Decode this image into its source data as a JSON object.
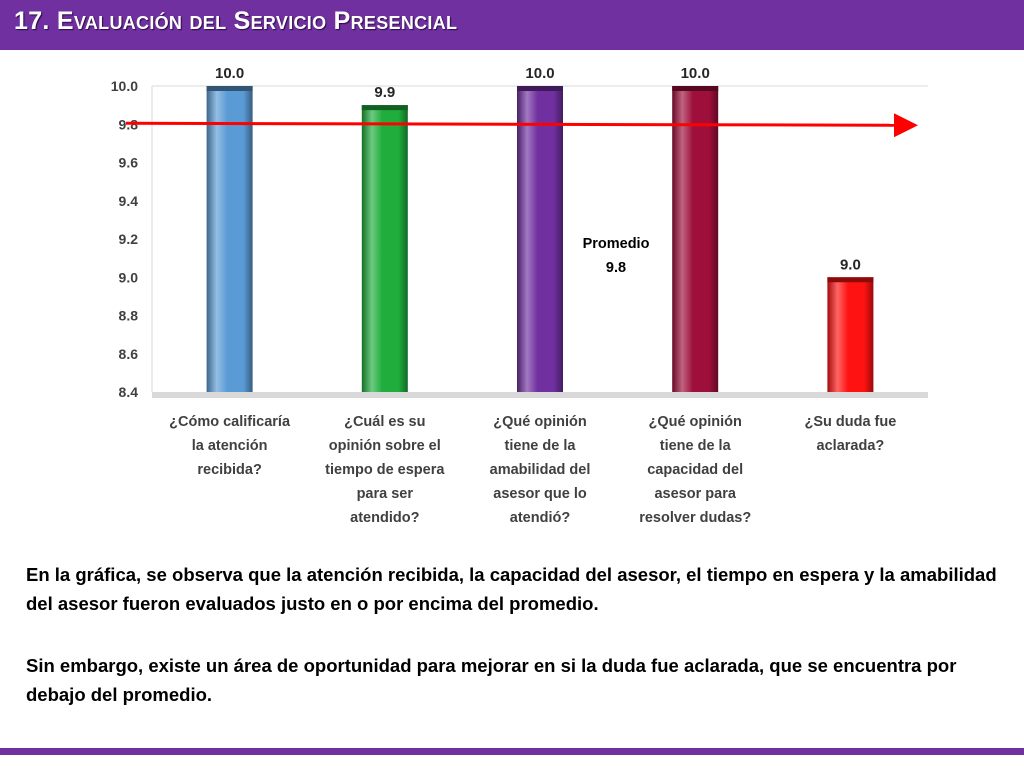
{
  "slide": {
    "title": "17. Evaluación del Servicio Presencial",
    "accent_color": "#7030a0",
    "paragraphs": [
      "En la gráfica, se observa que la atención recibida, la capacidad del asesor, el tiempo en espera y la amabilidad del asesor fueron evaluados justo en o por encima del promedio.",
      "Sin embargo, existe un área de oportunidad para mejorar en si la duda fue aclarada, que se encuentra por debajo del promedio."
    ]
  },
  "chart_data": {
    "type": "bar",
    "categories": [
      [
        "¿Cómo calificaría",
        "la atención",
        "recibida?"
      ],
      [
        "¿Cuál es su",
        "opinión sobre el",
        "tiempo de espera",
        "para ser",
        "atendido?"
      ],
      [
        "¿Qué opinión",
        "tiene de la",
        "amabilidad del",
        "asesor que lo",
        "atendió?"
      ],
      [
        "¿Qué opinión",
        "tiene de la",
        "capacidad del",
        "asesor para",
        "resolver dudas?"
      ],
      [
        "¿Su duda fue",
        "aclarada?"
      ]
    ],
    "values": [
      10.0,
      9.9,
      10.0,
      10.0,
      9.0
    ],
    "data_labels": [
      "10.0",
      "9.9",
      "10.0",
      "10.0",
      "9.0"
    ],
    "bar_colors": [
      "#5b9bd5",
      "#1fad3c",
      "#7030a0",
      "#9e0f3c",
      "#ff1212"
    ],
    "ylim": [
      8.4,
      10.0
    ],
    "yticks": [
      "10.0",
      "9.8",
      "9.6",
      "9.4",
      "9.2",
      "9.0",
      "8.8",
      "8.6",
      "8.4"
    ],
    "reference_line": {
      "value": 9.8,
      "color": "#ff0000",
      "label": [
        "Promedio",
        "9.8"
      ]
    },
    "grid": false,
    "legend": "none"
  }
}
